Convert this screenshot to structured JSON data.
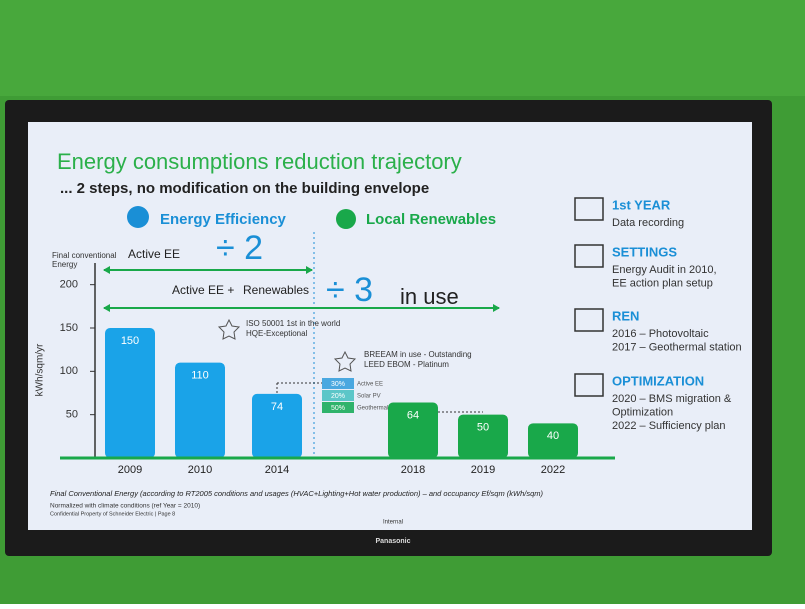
{
  "chart_data": {
    "type": "bar",
    "title": "Energy consumptions reduction trajectory",
    "subtitle": "... 2 steps, no modification on the building envelope",
    "y_label": "kWh/sqm/yr",
    "y_top_label": [
      "Final conventional",
      "Energy"
    ],
    "categories": [
      "2009",
      "2010",
      "2014",
      "2018",
      "2019",
      "2022"
    ],
    "values": [
      150,
      110,
      74,
      64,
      50,
      40
    ],
    "colors": [
      "#1aa3e8",
      "#1aa3e8",
      "#1aa3e8",
      "#19a84a",
      "#19a84a",
      "#19a84a"
    ],
    "ylim": [
      0,
      225
    ],
    "yticks": [
      50,
      100,
      150,
      200
    ],
    "phases": [
      "Energy Efficiency",
      "Local Renewables"
    ],
    "annotations": {
      "step1_label": "Active EE",
      "step1_factor": "÷ 2",
      "step2_label": "Active EE +",
      "step2_label2": "Renewables",
      "step2_factor": "÷ 3",
      "step2_suffix": "in use",
      "iso": [
        "ISO 50001 1st in the world",
        "HQE-Exceptional"
      ],
      "breeam": [
        "BREEAM in use - Outstanding",
        "LEED EBOM - Platinum"
      ],
      "mix": [
        {
          "pct": "30%",
          "name": "Active EE"
        },
        {
          "pct": "20%",
          "name": "Solar PV"
        },
        {
          "pct": "50%",
          "name": "Geothermal"
        }
      ]
    },
    "footnotes": [
      "Final Conventional Energy (according to RT2005 conditions and usages (HVAC+Lighting+Hot water production) – and occupancy  Ef/sqm (kWh/sqm)",
      "Normalized with climate conditions (ref Year = 2010)",
      "Confidential Property of Schneider Electric | Page 8"
    ]
  },
  "sidebar": [
    {
      "title": "1st YEAR",
      "lines": [
        "Data recording"
      ]
    },
    {
      "title": "SETTINGS",
      "lines": [
        "Energy Audit in 2010,",
        "EE action plan setup"
      ]
    },
    {
      "title": "REN",
      "lines": [
        "2016 – Photovoltaic",
        "2017 – Geothermal station"
      ]
    },
    {
      "title": "OPTIMIZATION",
      "lines": [
        "2020 – BMS migration &",
        "Optimization",
        "2022 – Sufficiency plan"
      ]
    }
  ],
  "screen": {
    "classification": "Internal",
    "brand": "Panasonic"
  }
}
